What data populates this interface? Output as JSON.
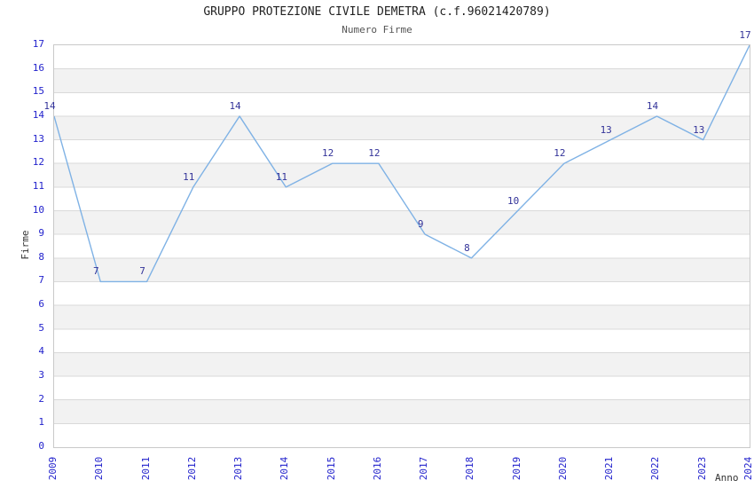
{
  "chart_data": {
    "type": "line",
    "title": "GRUPPO PROTEZIONE CIVILE DEMETRA (c.f.96021420789)",
    "subtitle": "Numero Firme",
    "xlabel": "Anno",
    "ylabel": "Firme",
    "x": [
      "2009",
      "2010",
      "2011",
      "2012",
      "2013",
      "2014",
      "2015",
      "2016",
      "2017",
      "2018",
      "2019",
      "2020",
      "2021",
      "2022",
      "2023",
      "2024"
    ],
    "series": [
      {
        "name": "Numero Firme",
        "values": [
          14,
          7,
          7,
          11,
          14,
          11,
          12,
          12,
          9,
          8,
          10,
          12,
          13,
          14,
          13,
          17
        ]
      }
    ],
    "ylim": [
      0,
      17
    ],
    "ytick_step": 1,
    "grid": true,
    "legend_position": "none",
    "data_labels_visible": true,
    "colors": {
      "line": "#7fb2e5",
      "data_label": "#333399",
      "tick_label": "#2222cc",
      "title": "#222222",
      "subtitle": "#555555",
      "axis_title": "#333333",
      "band": "#f2f2f2",
      "gridline": "#d9d9d9",
      "plot_border": "#c9c9c9",
      "background": "#ffffff"
    }
  }
}
